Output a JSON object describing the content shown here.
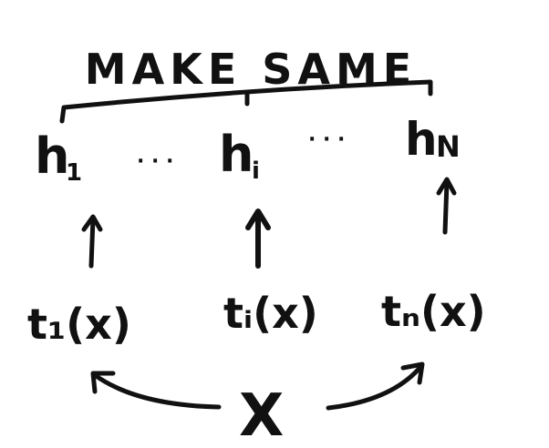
{
  "title": "MAKE SAME",
  "top_labels": {
    "first": "h",
    "first_sub": "1",
    "middle": "h",
    "middle_sub": "i",
    "last": "h",
    "last_sub": "N",
    "ellipsis": "· · ·"
  },
  "bottom_labels": {
    "first": "t₁(x)",
    "middle": "tᵢ(x)",
    "last": "tₙ(x)"
  },
  "input_label": "X",
  "colors": {
    "ink": "#111111",
    "background": "#ffffff"
  }
}
